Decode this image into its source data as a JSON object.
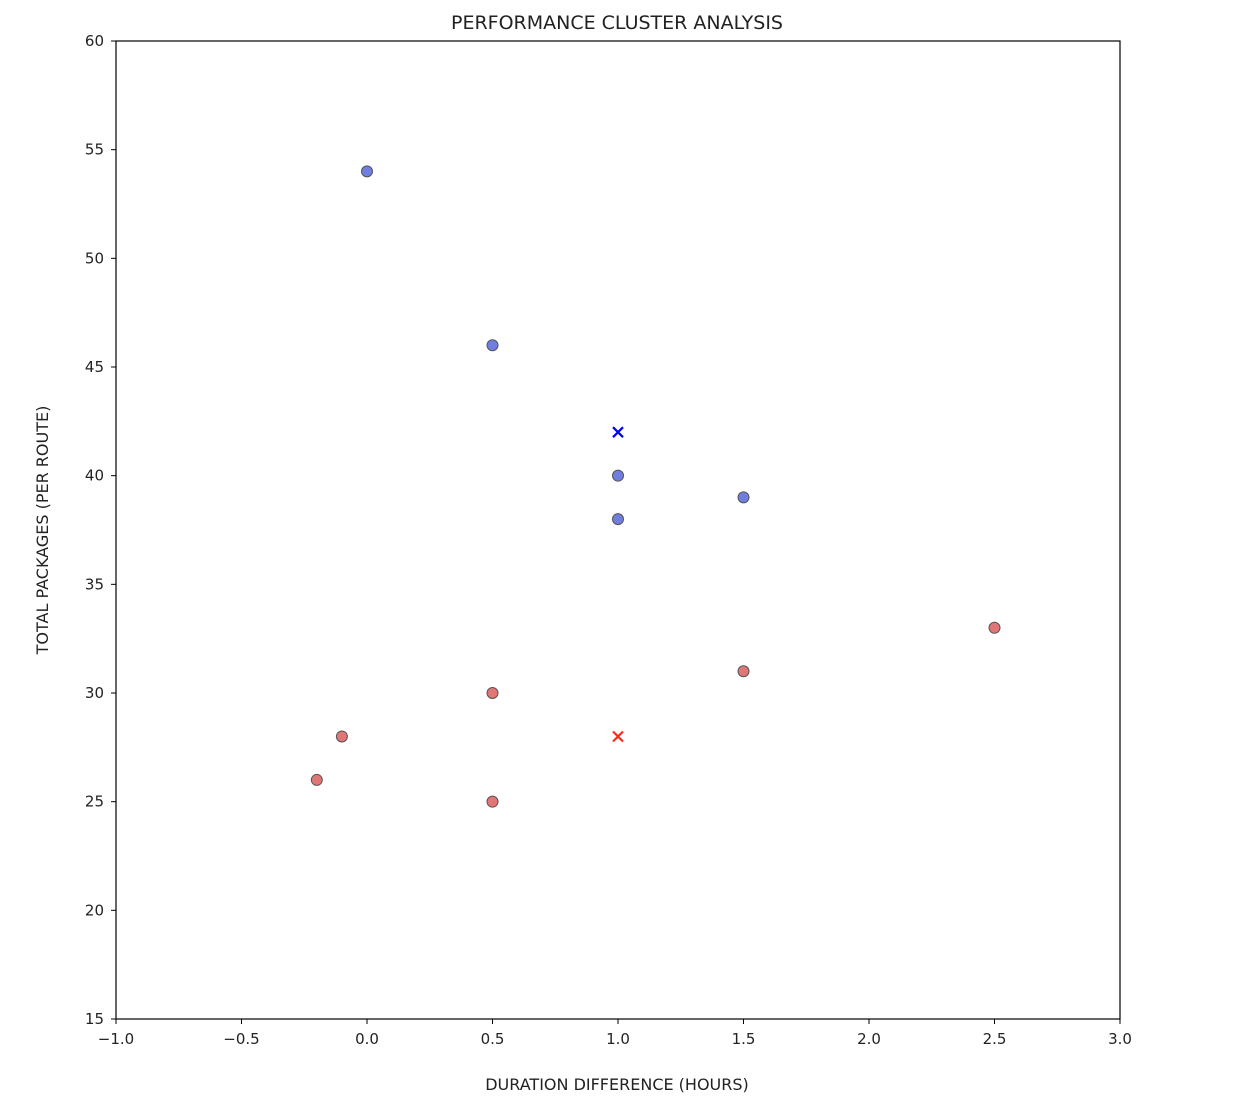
{
  "chart_data": {
    "type": "scatter",
    "title": "PERFORMANCE CLUSTER ANALYSIS",
    "xlabel": "DURATION DIFFERENCE (HOURS)",
    "ylabel": "TOTAL PACKAGES (PER ROUTE)",
    "xlim": [
      -1.0,
      3.0
    ],
    "ylim": [
      15,
      60
    ],
    "x_ticks": [
      -1.0,
      -0.5,
      0.0,
      0.5,
      1.0,
      1.5,
      2.0,
      2.5,
      3.0
    ],
    "x_tick_labels": [
      "−1.0",
      "−0.5",
      "0.0",
      "0.5",
      "1.0",
      "1.5",
      "2.0",
      "2.5",
      "3.0"
    ],
    "y_ticks": [
      15,
      20,
      25,
      30,
      35,
      40,
      45,
      50,
      55,
      60
    ],
    "y_tick_labels": [
      "15",
      "20",
      "25",
      "30",
      "35",
      "40",
      "45",
      "50",
      "55",
      "60"
    ],
    "grid": false,
    "series": [
      {
        "color": "#6f7ee0",
        "points": [
          {
            "x": 0.0,
            "y": 54
          },
          {
            "x": 0.5,
            "y": 46
          },
          {
            "x": 1.0,
            "y": 40
          },
          {
            "x": 1.0,
            "y": 38
          },
          {
            "x": 1.5,
            "y": 39
          }
        ]
      },
      {
        "color": "#e07676",
        "points": [
          {
            "x": 2.5,
            "y": 33
          },
          {
            "x": 1.5,
            "y": 31
          },
          {
            "x": 0.5,
            "y": 30
          },
          {
            "x": -0.1,
            "y": 28
          },
          {
            "x": -0.2,
            "y": 26
          },
          {
            "x": 0.5,
            "y": 25
          }
        ]
      }
    ],
    "centroids": [
      {
        "x": 1.0,
        "y": 42,
        "color": "#0000ff"
      },
      {
        "x": 1.0,
        "y": 28,
        "color": "#ff2a1a"
      }
    ]
  }
}
